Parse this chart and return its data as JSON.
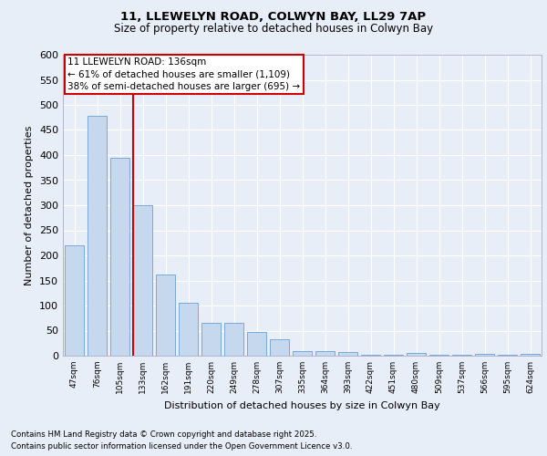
{
  "title": "11, LLEWELYN ROAD, COLWYN BAY, LL29 7AP",
  "subtitle": "Size of property relative to detached houses in Colwyn Bay",
  "xlabel": "Distribution of detached houses by size in Colwyn Bay",
  "ylabel": "Number of detached properties",
  "categories": [
    "47sqm",
    "76sqm",
    "105sqm",
    "133sqm",
    "162sqm",
    "191sqm",
    "220sqm",
    "249sqm",
    "278sqm",
    "307sqm",
    "335sqm",
    "364sqm",
    "393sqm",
    "422sqm",
    "451sqm",
    "480sqm",
    "509sqm",
    "537sqm",
    "566sqm",
    "595sqm",
    "624sqm"
  ],
  "values": [
    220,
    478,
    395,
    300,
    162,
    105,
    65,
    65,
    47,
    32,
    10,
    10,
    8,
    2,
    2,
    5,
    1,
    1,
    3,
    1,
    3
  ],
  "bar_color": "#c5d8ee",
  "bar_edge_color": "#6a9fd8",
  "highlight_bar_index": 3,
  "highlight_color": "#cc0000",
  "ylim": [
    0,
    600
  ],
  "yticks": [
    0,
    50,
    100,
    150,
    200,
    250,
    300,
    350,
    400,
    450,
    500,
    550,
    600
  ],
  "annotation_title": "11 LLEWELYN ROAD: 136sqm",
  "annotation_line1": "← 61% of detached houses are smaller (1,109)",
  "annotation_line2": "38% of semi-detached houses are larger (695) →",
  "footer_line1": "Contains HM Land Registry data © Crown copyright and database right 2025.",
  "footer_line2": "Contains public sector information licensed under the Open Government Licence v3.0.",
  "bg_color": "#e8eef8",
  "plot_bg_color": "#e8eef8",
  "grid_color": "#ffffff"
}
